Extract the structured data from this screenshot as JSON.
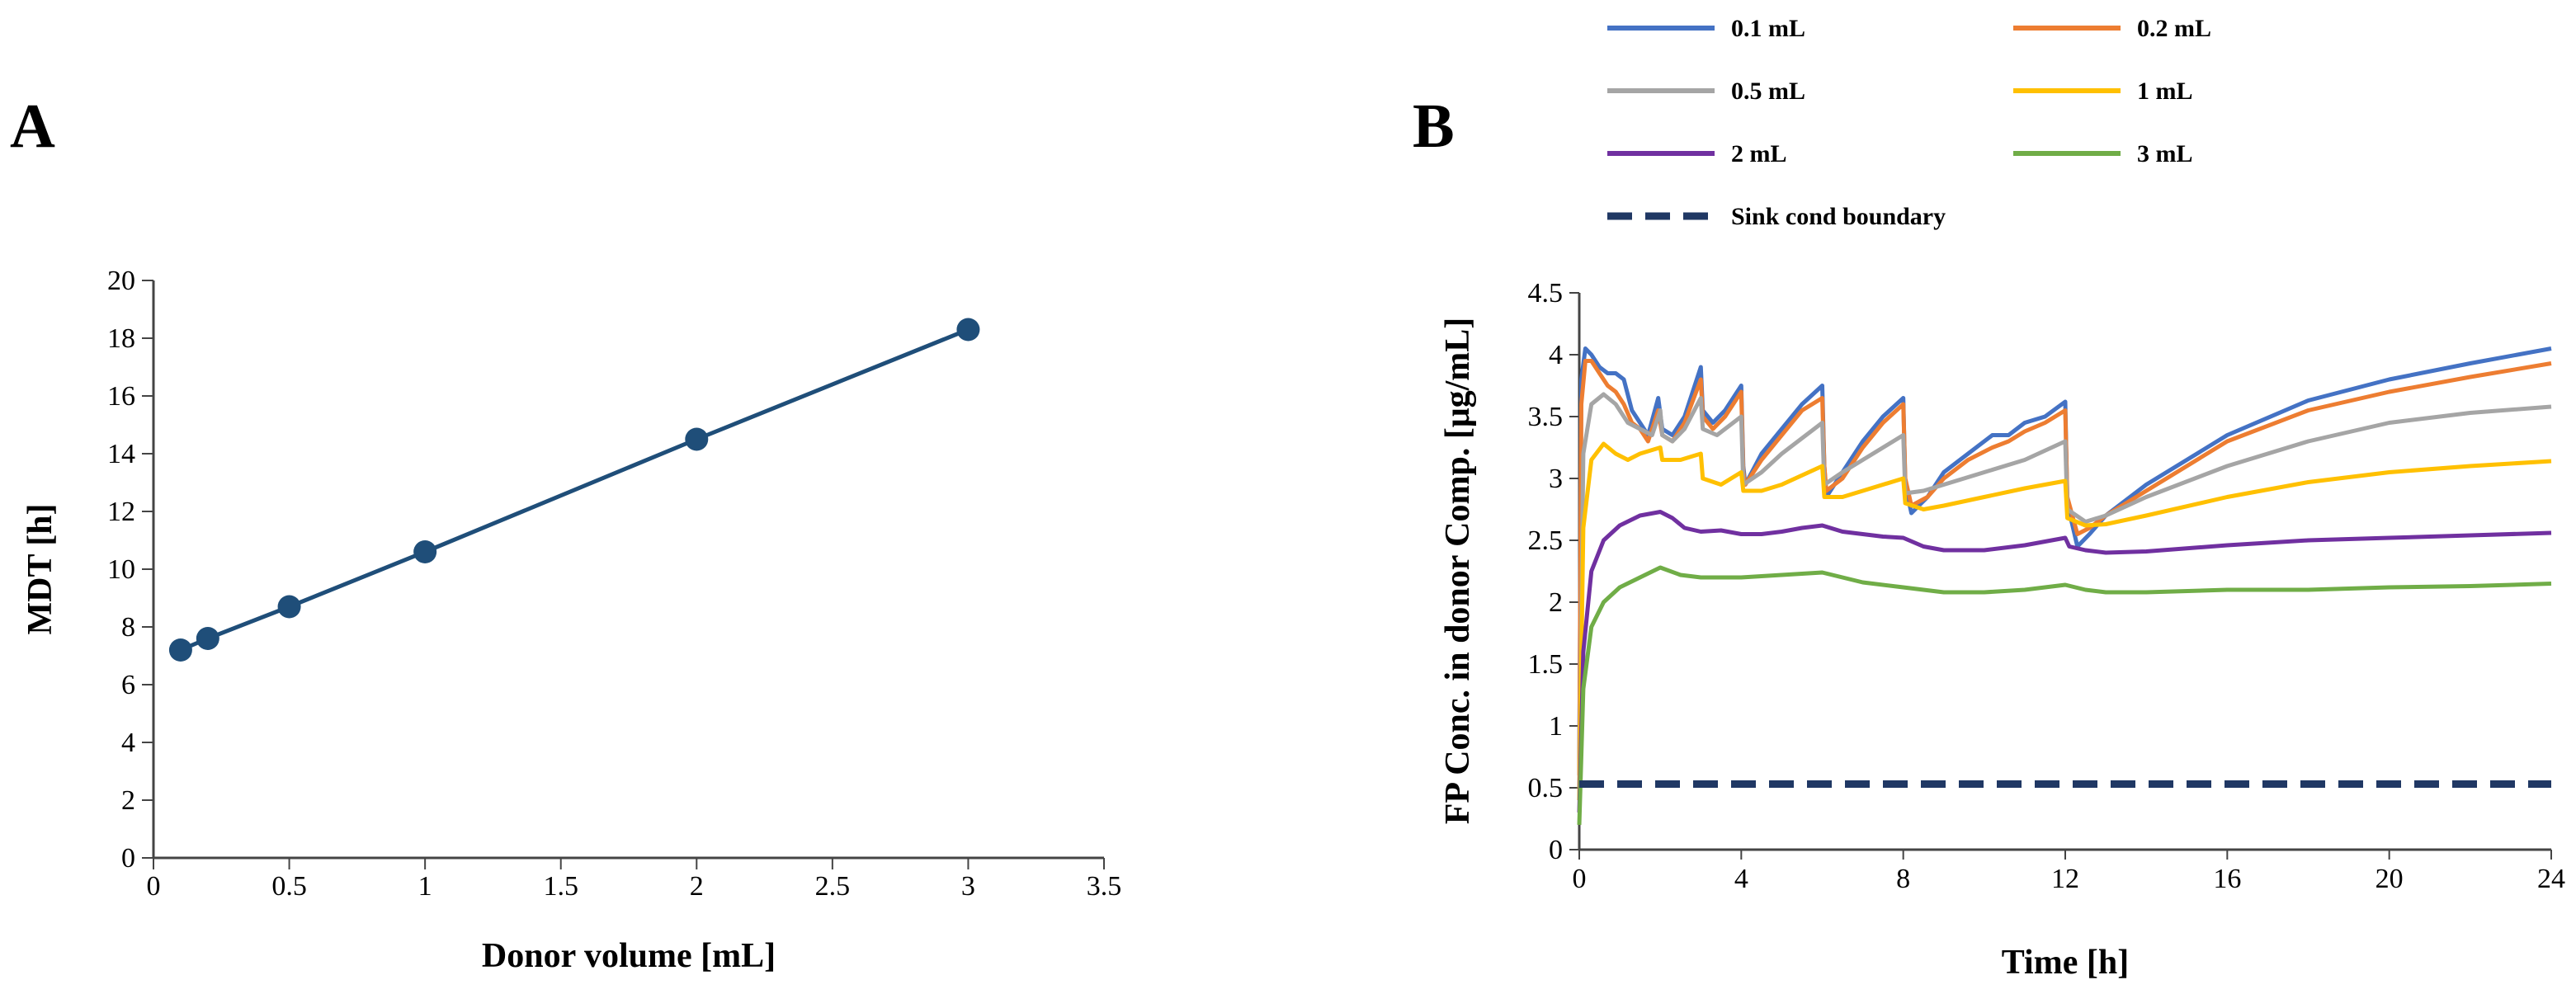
{
  "chart_data": [
    {
      "type": "line",
      "panel_label": "A",
      "xlabel": "Donor volume [mL]",
      "ylabel": "MDT [h]",
      "xlim": [
        0,
        3.5
      ],
      "ylim": [
        0,
        20
      ],
      "xticks": [
        "0",
        "0.5",
        "1",
        "1.5",
        "2",
        "2.5",
        "3",
        "3.5"
      ],
      "yticks": [
        "0",
        "2",
        "4",
        "6",
        "8",
        "10",
        "12",
        "14",
        "16",
        "18",
        "20"
      ],
      "grid": false,
      "series": [
        {
          "name": "MDT",
          "color": "#1f4e79",
          "markers": true,
          "x": [
            0.1,
            0.2,
            0.5,
            1,
            2,
            3
          ],
          "y": [
            7.2,
            7.6,
            8.7,
            10.6,
            14.5,
            18.3
          ]
        }
      ]
    },
    {
      "type": "line",
      "panel_label": "B",
      "xlabel": "Time [h]",
      "ylabel": "FP Conc.  in donor Comp. [μg/mL]",
      "xlim": [
        0,
        24
      ],
      "ylim": [
        0,
        4.5
      ],
      "xticks": [
        "0",
        "4",
        "8",
        "12",
        "16",
        "20",
        "24"
      ],
      "yticks": [
        "0",
        "0.5",
        "1",
        "1.5",
        "2",
        "2.5",
        "3",
        "3.5",
        "4",
        "4.5"
      ],
      "grid": false,
      "legend_position": "top",
      "series": [
        {
          "name": "0.1 mL",
          "color": "#4472c4",
          "x": [
            0,
            0.05,
            0.15,
            0.3,
            0.5,
            0.7,
            0.9,
            1.1,
            1.3,
            1.5,
            1.7,
            1.95,
            2.05,
            2.3,
            2.6,
            3.0,
            3.05,
            3.3,
            3.6,
            4.0,
            4.05,
            4.1,
            4.5,
            5.0,
            5.5,
            6.0,
            6.05,
            6.1,
            6.5,
            7.0,
            7.5,
            8.0,
            8.05,
            8.2,
            8.6,
            9.0,
            9.6,
            10.2,
            10.6,
            11.0,
            11.5,
            12.0,
            12.05,
            12.3,
            12.6,
            13.0,
            14.0,
            16.0,
            18.0,
            20.0,
            22.0,
            24.0
          ],
          "y": [
            0.6,
            3.8,
            4.05,
            4.0,
            3.9,
            3.85,
            3.85,
            3.8,
            3.55,
            3.45,
            3.35,
            3.65,
            3.4,
            3.35,
            3.5,
            3.9,
            3.55,
            3.45,
            3.55,
            3.75,
            3.1,
            2.95,
            3.2,
            3.4,
            3.6,
            3.75,
            3.1,
            2.85,
            3.05,
            3.3,
            3.5,
            3.65,
            2.95,
            2.72,
            2.85,
            3.05,
            3.2,
            3.35,
            3.35,
            3.45,
            3.5,
            3.62,
            2.8,
            2.45,
            2.55,
            2.7,
            2.95,
            3.35,
            3.63,
            3.8,
            3.93,
            4.05
          ]
        },
        {
          "name": "0.2 mL",
          "color": "#ed7d31",
          "x": [
            0,
            0.05,
            0.15,
            0.3,
            0.5,
            0.7,
            0.9,
            1.1,
            1.3,
            1.5,
            1.7,
            1.95,
            2.05,
            2.3,
            2.6,
            3.0,
            3.05,
            3.3,
            3.6,
            4.0,
            4.05,
            4.1,
            4.5,
            5.0,
            5.5,
            6.0,
            6.05,
            6.1,
            6.5,
            7.0,
            7.5,
            8.0,
            8.05,
            8.2,
            8.6,
            9.0,
            9.6,
            10.2,
            10.6,
            11.0,
            11.5,
            12.0,
            12.05,
            12.3,
            12.6,
            13.0,
            14.0,
            16.0,
            18.0,
            20.0,
            22.0,
            24.0
          ],
          "y": [
            0.6,
            3.6,
            3.95,
            3.95,
            3.85,
            3.75,
            3.7,
            3.6,
            3.45,
            3.4,
            3.3,
            3.55,
            3.35,
            3.3,
            3.45,
            3.8,
            3.5,
            3.4,
            3.5,
            3.7,
            3.05,
            2.95,
            3.15,
            3.35,
            3.55,
            3.65,
            3.1,
            2.9,
            3.0,
            3.25,
            3.45,
            3.6,
            3.0,
            2.78,
            2.85,
            3.0,
            3.15,
            3.25,
            3.3,
            3.38,
            3.45,
            3.55,
            2.85,
            2.55,
            2.6,
            2.7,
            2.9,
            3.3,
            3.55,
            3.7,
            3.82,
            3.93
          ]
        },
        {
          "name": "0.5 mL",
          "color": "#a5a5a5",
          "x": [
            0,
            0.1,
            0.3,
            0.6,
            0.9,
            1.2,
            1.5,
            1.8,
            2.0,
            2.05,
            2.3,
            2.6,
            3.0,
            3.05,
            3.4,
            4.0,
            4.05,
            4.5,
            5.0,
            6.0,
            6.05,
            6.5,
            7.0,
            8.0,
            8.05,
            8.5,
            9.0,
            10.0,
            11.0,
            12.0,
            12.05,
            12.5,
            13.0,
            14.0,
            16.0,
            18.0,
            20.0,
            22.0,
            24.0
          ],
          "y": [
            0.5,
            3.2,
            3.6,
            3.68,
            3.6,
            3.45,
            3.4,
            3.35,
            3.55,
            3.35,
            3.3,
            3.4,
            3.65,
            3.4,
            3.35,
            3.5,
            2.95,
            3.05,
            3.2,
            3.45,
            2.95,
            3.05,
            3.15,
            3.35,
            2.88,
            2.9,
            2.95,
            3.05,
            3.15,
            3.3,
            2.75,
            2.65,
            2.7,
            2.85,
            3.1,
            3.3,
            3.45,
            3.53,
            3.58
          ]
        },
        {
          "name": "1 mL",
          "color": "#ffc000",
          "x": [
            0,
            0.1,
            0.3,
            0.6,
            0.9,
            1.2,
            1.5,
            2.0,
            2.05,
            2.5,
            3.0,
            3.05,
            3.5,
            4.0,
            4.05,
            4.5,
            5.0,
            6.0,
            6.05,
            6.5,
            7.0,
            8.0,
            8.05,
            8.5,
            9.0,
            10.0,
            11.0,
            12.0,
            12.05,
            12.5,
            13.0,
            14.0,
            16.0,
            18.0,
            20.0,
            22.0,
            24.0
          ],
          "y": [
            0.4,
            2.6,
            3.15,
            3.28,
            3.2,
            3.15,
            3.2,
            3.25,
            3.15,
            3.15,
            3.2,
            3.0,
            2.95,
            3.05,
            2.9,
            2.9,
            2.95,
            3.1,
            2.85,
            2.85,
            2.9,
            3.0,
            2.8,
            2.75,
            2.78,
            2.85,
            2.92,
            2.98,
            2.68,
            2.62,
            2.63,
            2.7,
            2.85,
            2.97,
            3.05,
            3.1,
            3.14
          ]
        },
        {
          "name": "2 mL",
          "color": "#7030a0",
          "x": [
            0,
            0.1,
            0.3,
            0.6,
            1.0,
            1.5,
            2.0,
            2.3,
            2.6,
            3.0,
            3.5,
            4.0,
            4.5,
            5.0,
            5.5,
            6.0,
            6.5,
            7.0,
            7.5,
            8.0,
            8.5,
            9.0,
            10.0,
            11.0,
            12.0,
            12.1,
            12.5,
            13.0,
            14.0,
            16.0,
            18.0,
            20.0,
            22.0,
            24.0
          ],
          "y": [
            0.3,
            1.6,
            2.25,
            2.5,
            2.62,
            2.7,
            2.73,
            2.68,
            2.6,
            2.57,
            2.58,
            2.55,
            2.55,
            2.57,
            2.6,
            2.62,
            2.57,
            2.55,
            2.53,
            2.52,
            2.45,
            2.42,
            2.42,
            2.46,
            2.52,
            2.45,
            2.42,
            2.4,
            2.41,
            2.46,
            2.5,
            2.52,
            2.54,
            2.56
          ]
        },
        {
          "name": "3 mL",
          "color": "#70ad47",
          "x": [
            0,
            0.1,
            0.3,
            0.6,
            1.0,
            1.5,
            2.0,
            2.5,
            3.0,
            4.0,
            5.0,
            6.0,
            7.0,
            8.0,
            8.5,
            9.0,
            10.0,
            11.0,
            12.0,
            12.5,
            13.0,
            14.0,
            16.0,
            18.0,
            20.0,
            22.0,
            24.0
          ],
          "y": [
            0.2,
            1.3,
            1.8,
            2.0,
            2.12,
            2.2,
            2.28,
            2.22,
            2.2,
            2.2,
            2.22,
            2.24,
            2.16,
            2.12,
            2.1,
            2.08,
            2.08,
            2.1,
            2.14,
            2.1,
            2.08,
            2.08,
            2.1,
            2.1,
            2.12,
            2.13,
            2.15
          ]
        },
        {
          "name": "Sink cond boundary",
          "color": "#203864",
          "dashed": true,
          "x": [
            0,
            24
          ],
          "y": [
            0.53,
            0.53
          ]
        }
      ]
    }
  ]
}
